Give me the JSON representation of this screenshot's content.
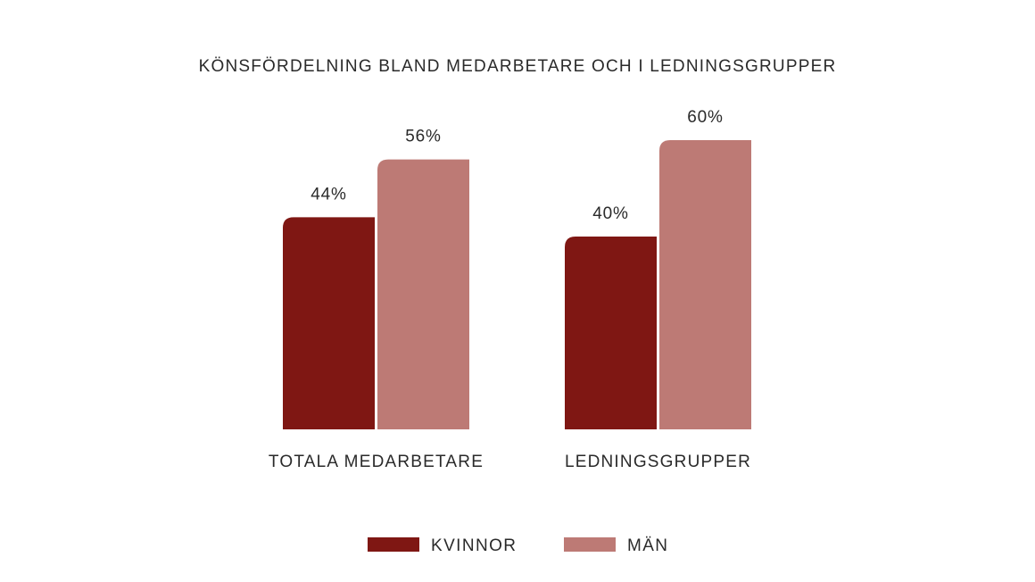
{
  "chart_data": {
    "type": "bar",
    "title": "KÖNSFÖRDELNING BLAND MEDARBETARE OCH I LEDNINGSGRUPPER",
    "categories": [
      "TOTALA MEDARBETARE",
      "LEDNINGSGRUPPER"
    ],
    "series": [
      {
        "name": "KVINNOR",
        "color": "#7f1713",
        "values": [
          44,
          40
        ],
        "labels": [
          "44%",
          "40%"
        ]
      },
      {
        "name": "MÄN",
        "color": "#bd7a75",
        "values": [
          56,
          60
        ],
        "labels": [
          "56%",
          "60%"
        ]
      }
    ],
    "ylim": [
      0,
      100
    ],
    "grid": false,
    "legend_position": "bottom-center"
  }
}
